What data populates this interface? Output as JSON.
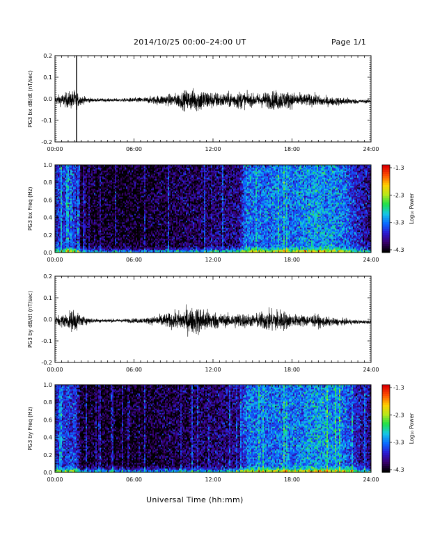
{
  "header": {
    "title": "2014/10/25   00:00–24:00 UT",
    "page": "Page 1/1"
  },
  "x_axis_label": "Universal Time (hh:mm)",
  "colorbar": {
    "label": "Log₁₀ Power",
    "ticks": [
      "-1.3",
      "-2.3",
      "-3.3",
      "-4.3"
    ],
    "colors": [
      "#000000",
      "#3a0070",
      "#2a1cd6",
      "#0a6cff",
      "#16c8e6",
      "#1ee04a",
      "#b8e81a",
      "#ffd000",
      "#ff5500",
      "#e00000"
    ]
  },
  "chart_data": [
    {
      "type": "line",
      "ylabel": "PG3 bx dB/dt (nT/sec)",
      "xlim": [
        "00:00",
        "24:00"
      ],
      "ylim": [
        -0.2,
        0.2
      ],
      "x_ticks": [
        "00:00",
        "06:00",
        "12:00",
        "18:00",
        "24:00"
      ],
      "y_ticks": [
        "0.2",
        "0.1",
        "0.0",
        "-0.1",
        "-0.2"
      ],
      "amplitude_envelope": {
        "hours": [
          0,
          1,
          1.5,
          2,
          3,
          5,
          7,
          8,
          9,
          10,
          11,
          12,
          13,
          14,
          15,
          16,
          17,
          18,
          19,
          20,
          21,
          22,
          23,
          24
        ],
        "peak_abs": [
          0.02,
          0.04,
          0.05,
          0.02,
          0.008,
          0.008,
          0.015,
          0.025,
          0.03,
          0.05,
          0.06,
          0.04,
          0.035,
          0.045,
          0.03,
          0.04,
          0.05,
          0.04,
          0.03,
          0.03,
          0.02,
          0.02,
          0.01,
          0.008
        ]
      },
      "spikes": [
        {
          "time": "01:38",
          "min": -0.2,
          "max": 0.2
        }
      ]
    },
    {
      "type": "heatmap",
      "ylabel": "PG3 bx Freq (Hz)",
      "xlim": [
        "00:00",
        "24:00"
      ],
      "ylim": [
        0.0,
        1.0
      ],
      "x_ticks": [
        "00:00",
        "06:00",
        "12:00",
        "18:00",
        "24:00"
      ],
      "y_ticks": [
        "1.0",
        "0.8",
        "0.6",
        "0.4",
        "0.2",
        "0.0"
      ],
      "color_scale": {
        "label": "Log₁₀ Power",
        "min": -4.3,
        "max": -1.3
      },
      "background_log_power": {
        "hours": [
          0,
          1.5,
          2,
          6,
          9,
          12,
          14,
          14.5,
          16,
          18,
          20,
          22,
          23,
          24
        ],
        "values": [
          -3.6,
          -3.5,
          -4.2,
          -4.25,
          -4.1,
          -4.0,
          -3.9,
          -3.3,
          -3.3,
          -3.3,
          -3.1,
          -3.3,
          -3.7,
          -3.9
        ]
      }
    },
    {
      "type": "line",
      "ylabel": "PG3 by dB/dt (nT/sec)",
      "xlim": [
        "00:00",
        "24:00"
      ],
      "ylim": [
        -0.2,
        0.2
      ],
      "x_ticks": [
        "00:00",
        "06:00",
        "12:00",
        "18:00",
        "24:00"
      ],
      "y_ticks": [
        "0.2",
        "0.1",
        "0.0",
        "-0.1",
        "-0.2"
      ],
      "amplitude_envelope": {
        "hours": [
          0,
          1,
          1.5,
          2,
          3,
          5,
          7,
          8,
          9,
          10,
          11,
          12,
          13,
          14,
          15,
          16,
          17,
          18,
          19,
          20,
          21,
          22,
          23,
          24
        ],
        "peak_abs": [
          0.02,
          0.04,
          0.06,
          0.025,
          0.01,
          0.008,
          0.015,
          0.03,
          0.04,
          0.06,
          0.07,
          0.045,
          0.03,
          0.04,
          0.03,
          0.05,
          0.06,
          0.03,
          0.03,
          0.03,
          0.02,
          0.015,
          0.01,
          0.008
        ]
      },
      "spikes": []
    },
    {
      "type": "heatmap",
      "ylabel": "PG3 by Freq (Hz)",
      "xlim": [
        "00:00",
        "24:00"
      ],
      "ylim": [
        0.0,
        1.0
      ],
      "x_ticks": [
        "00:00",
        "06:00",
        "12:00",
        "18:00",
        "24:00"
      ],
      "y_ticks": [
        "1.0",
        "0.8",
        "0.6",
        "0.4",
        "0.2",
        "0.0"
      ],
      "color_scale": {
        "label": "Log₁₀ Power",
        "min": -4.3,
        "max": -1.3
      },
      "background_log_power": {
        "hours": [
          0,
          1.5,
          2,
          6,
          9,
          12,
          14,
          14.5,
          16,
          18,
          20,
          22,
          23,
          24
        ],
        "values": [
          -3.6,
          -3.5,
          -4.2,
          -4.25,
          -4.1,
          -4.0,
          -3.9,
          -3.3,
          -3.3,
          -3.3,
          -3.1,
          -3.3,
          -3.7,
          -3.9
        ]
      }
    }
  ]
}
